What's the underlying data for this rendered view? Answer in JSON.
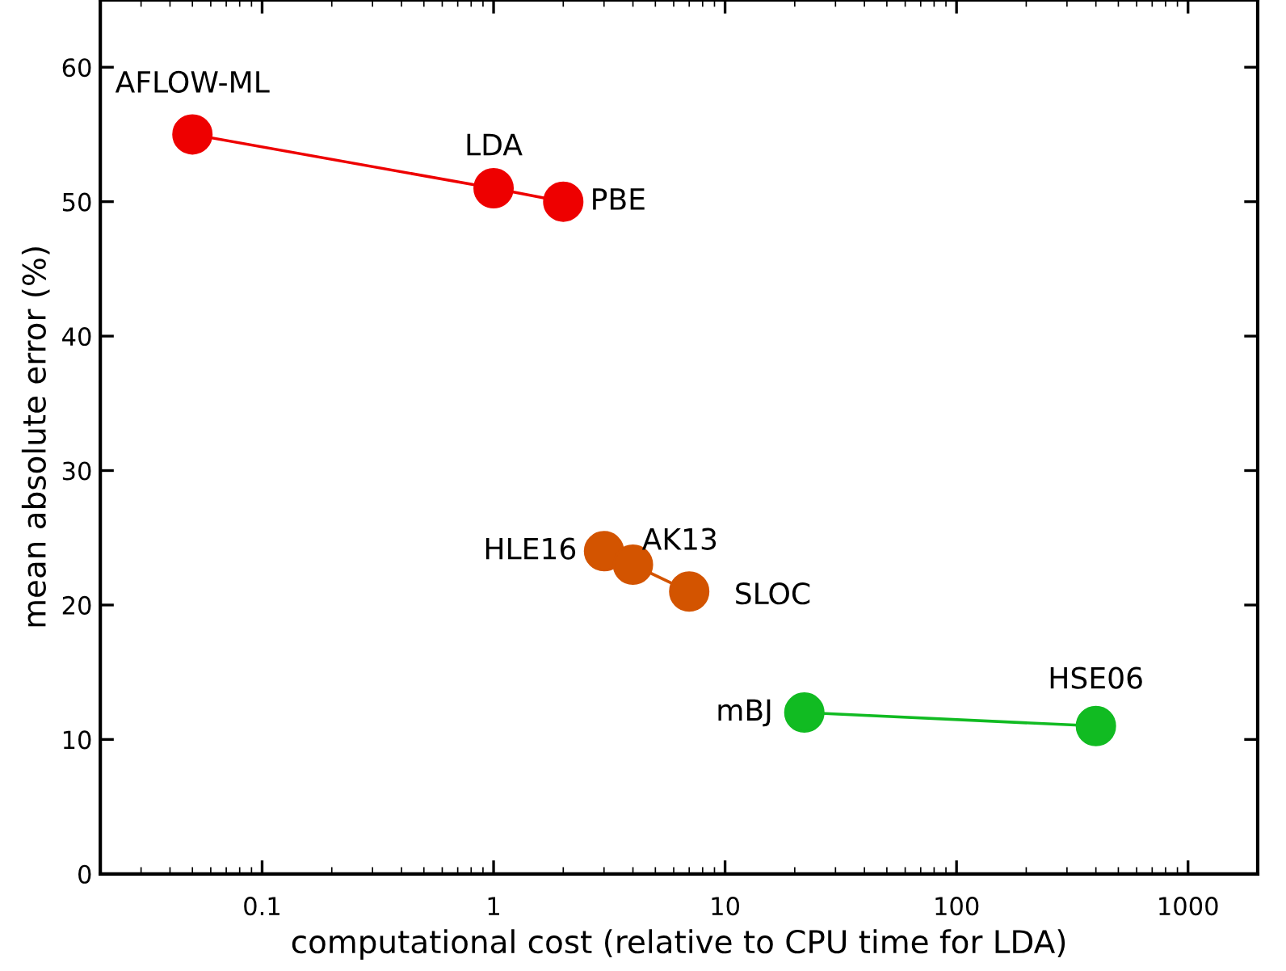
{
  "chart_data": {
    "type": "line",
    "xlabel": "computational cost (relative to CPU time for LDA)",
    "ylabel": "mean absolute error (%)",
    "log": "x",
    "xlim": [
      0.02,
      2000
    ],
    "xticks": [
      0.1,
      1,
      10,
      100,
      1000
    ],
    "ylim": [
      0,
      65
    ],
    "yticks": [
      0,
      10,
      20,
      30,
      40,
      50,
      60
    ],
    "grid": false,
    "marker": "circle",
    "line_style": "solid",
    "series": [
      {
        "color": "#ee0000",
        "x": [
          0.05,
          1,
          2
        ],
        "values": [
          55,
          51,
          50
        ]
      },
      {
        "color": "#d35400",
        "x": [
          3,
          4,
          7
        ],
        "values": [
          24,
          23,
          21
        ]
      },
      {
        "color": "#11bb22",
        "x": [
          22,
          400
        ],
        "values": [
          12,
          11
        ]
      }
    ],
    "annotations": [
      {
        "text": "AFLOW-ML",
        "x": 0.05,
        "y": 55
      },
      {
        "text": "LDA",
        "x": 1,
        "y": 51
      },
      {
        "text": "PBE",
        "x": 2,
        "y": 50
      },
      {
        "text": "HLE16",
        "x": 3,
        "y": 24
      },
      {
        "text": "AK13",
        "x": 4,
        "y": 23
      },
      {
        "text": "SLOC",
        "x": 7,
        "y": 21
      },
      {
        "text": "mBJ",
        "x": 22,
        "y": 12
      },
      {
        "text": "HSE06",
        "x": 400,
        "y": 11
      }
    ]
  }
}
